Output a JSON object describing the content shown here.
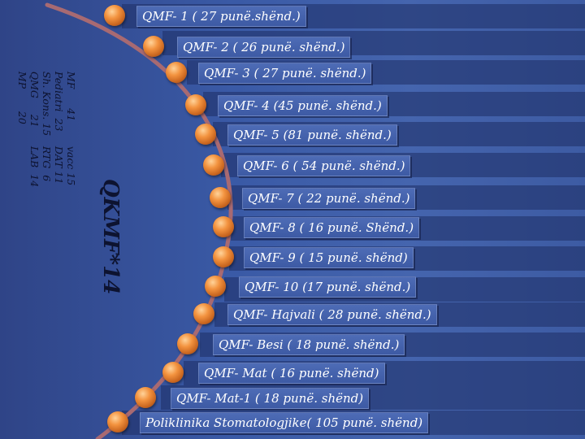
{
  "items": [
    {
      "label": "QMF- 1 ( 27 punë.shënd.)"
    },
    {
      "label": "QMF- 2    ( 26 punë. shënd.)"
    },
    {
      "label": "QMF- 3   ( 27 punë. shënd.)"
    },
    {
      "label": "QMF- 4  (45 punë. shënd.)"
    },
    {
      "label": "QMF- 5   (81 punë. shënd.)"
    },
    {
      "label": "QMF- 6   ( 54 punë. shënd.)"
    },
    {
      "label": "QMF- 7 ( 22 punë. shënd.)"
    },
    {
      "label": "QMF- 8 ( 16  punë. Shënd.)"
    },
    {
      "label": "QMF- 9   ( 15 punë. shënd)"
    },
    {
      "label": "QMF- 10   (17 punë. shënd.)"
    },
    {
      "label": "QMF- Hajvali   ( 28 punë. shënd.)"
    },
    {
      "label": "QMF- Besi ( 18 punë. shënd.)"
    },
    {
      "label": "QMF- Mat ( 16 punë. shënd)"
    },
    {
      "label": "QMF- Mat-1 ( 18 punë. shënd)"
    },
    {
      "label": "Poliklinika Stomatologjike( 105 punë. shënd)"
    }
  ],
  "center_title": "QKMF*14",
  "stats": [
    {
      "left": "MF      41",
      "right": "vacc 15"
    },
    {
      "left": "Pediatri  23",
      "right": "DAT 11"
    },
    {
      "left": "Sh. Kons. 15",
      "right": "RTG  6"
    },
    {
      "left": "QMG     21",
      "right": "LAB  14"
    },
    {
      "left": "MP       20",
      "right": ""
    }
  ],
  "colors": {
    "accent": "#f3933f",
    "arc": "#a86a72",
    "label_bg": "#4a67b2"
  }
}
